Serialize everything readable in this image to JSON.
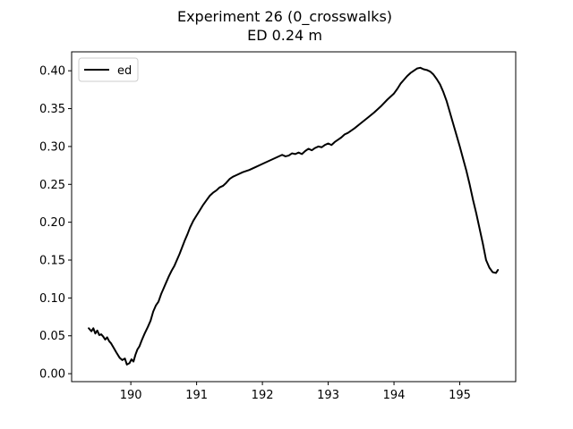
{
  "chart_data": {
    "type": "line",
    "title": "Experiment 26 (0_crosswalks)",
    "subtitle": "ED 0.24 m",
    "xlabel": "",
    "ylabel": "",
    "xlim": [
      189.1,
      195.85
    ],
    "ylim": [
      -0.0105,
      0.425
    ],
    "x_ticks": [
      190,
      191,
      192,
      193,
      194,
      195
    ],
    "x_tick_labels": [
      "190",
      "191",
      "192",
      "193",
      "194",
      "195"
    ],
    "y_ticks": [
      0.0,
      0.05,
      0.1,
      0.15,
      0.2,
      0.25,
      0.3,
      0.35,
      0.4
    ],
    "y_tick_labels": [
      "0.00",
      "0.05",
      "0.10",
      "0.15",
      "0.20",
      "0.25",
      "0.30",
      "0.35",
      "0.40"
    ],
    "grid": false,
    "legend": {
      "position": "upper-left",
      "entries": [
        "ed"
      ]
    },
    "series": [
      {
        "name": "ed",
        "color": "#000000",
        "x": [
          189.36,
          189.4,
          189.43,
          189.46,
          189.49,
          189.52,
          189.55,
          189.58,
          189.61,
          189.64,
          189.67,
          189.7,
          189.74,
          189.78,
          189.83,
          189.87,
          189.91,
          189.94,
          189.98,
          190.01,
          190.04,
          190.07,
          190.1,
          190.13,
          190.17,
          190.21,
          190.26,
          190.3,
          190.34,
          190.38,
          190.42,
          190.46,
          190.5,
          190.54,
          190.58,
          190.62,
          190.66,
          190.7,
          190.74,
          190.78,
          190.82,
          190.86,
          190.9,
          190.95,
          191.0,
          191.05,
          191.1,
          191.15,
          191.2,
          191.25,
          191.3,
          191.35,
          191.4,
          191.45,
          191.5,
          191.55,
          191.6,
          191.7,
          191.8,
          191.9,
          192.0,
          192.1,
          192.2,
          192.3,
          192.35,
          192.4,
          192.45,
          192.5,
          192.55,
          192.6,
          192.65,
          192.7,
          192.75,
          192.8,
          192.85,
          192.9,
          192.95,
          193.0,
          193.05,
          193.1,
          193.15,
          193.2,
          193.25,
          193.3,
          193.4,
          193.5,
          193.6,
          193.7,
          193.8,
          193.9,
          194.0,
          194.05,
          194.1,
          194.15,
          194.2,
          194.25,
          194.3,
          194.35,
          194.4,
          194.45,
          194.5,
          194.55,
          194.6,
          194.65,
          194.7,
          194.75,
          194.8,
          194.85,
          194.9,
          194.95,
          195.0,
          195.05,
          195.1,
          195.15,
          195.2,
          195.25,
          195.3,
          195.35,
          195.4,
          195.45,
          195.5,
          195.55,
          195.58
        ],
        "y": [
          0.06,
          0.056,
          0.06,
          0.053,
          0.057,
          0.051,
          0.052,
          0.049,
          0.045,
          0.048,
          0.043,
          0.04,
          0.034,
          0.028,
          0.021,
          0.018,
          0.02,
          0.012,
          0.014,
          0.019,
          0.016,
          0.025,
          0.032,
          0.036,
          0.045,
          0.053,
          0.062,
          0.07,
          0.082,
          0.09,
          0.095,
          0.105,
          0.113,
          0.121,
          0.129,
          0.136,
          0.142,
          0.15,
          0.158,
          0.167,
          0.176,
          0.184,
          0.193,
          0.202,
          0.209,
          0.216,
          0.223,
          0.229,
          0.235,
          0.239,
          0.242,
          0.246,
          0.248,
          0.252,
          0.257,
          0.26,
          0.262,
          0.266,
          0.269,
          0.273,
          0.277,
          0.281,
          0.285,
          0.289,
          0.287,
          0.288,
          0.291,
          0.29,
          0.292,
          0.29,
          0.294,
          0.297,
          0.295,
          0.298,
          0.3,
          0.299,
          0.302,
          0.304,
          0.302,
          0.306,
          0.309,
          0.312,
          0.316,
          0.318,
          0.324,
          0.331,
          0.338,
          0.345,
          0.353,
          0.362,
          0.37,
          0.376,
          0.383,
          0.388,
          0.393,
          0.397,
          0.4,
          0.403,
          0.404,
          0.402,
          0.401,
          0.399,
          0.395,
          0.389,
          0.382,
          0.372,
          0.36,
          0.345,
          0.33,
          0.315,
          0.3,
          0.284,
          0.268,
          0.25,
          0.23,
          0.212,
          0.192,
          0.172,
          0.15,
          0.14,
          0.134,
          0.133,
          0.137
        ]
      }
    ]
  }
}
